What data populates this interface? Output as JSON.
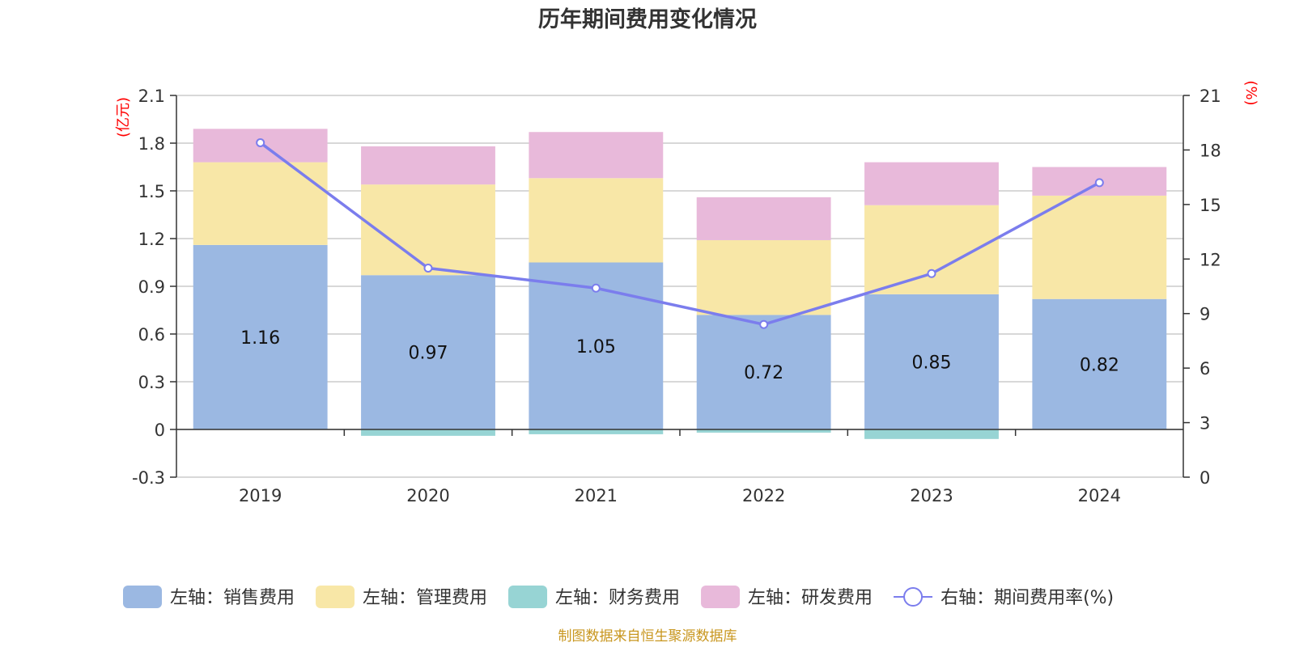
{
  "chart_data": {
    "type": "bar",
    "title": "历年期间费用变化情况",
    "categories": [
      "2019",
      "2020",
      "2021",
      "2022",
      "2023",
      "2024"
    ],
    "left_axis": {
      "unit": "(亿元)",
      "ylim": [
        -0.3,
        2.1
      ],
      "ticks": [
        "-0.3",
        "0",
        "0.3",
        "0.6",
        "0.9",
        "1.2",
        "1.5",
        "1.8",
        "2.1"
      ]
    },
    "right_axis": {
      "unit": "(%)",
      "ylim": [
        0,
        21
      ],
      "ticks": [
        "0",
        "3",
        "6",
        "9",
        "12",
        "15",
        "18",
        "21"
      ]
    },
    "series": [
      {
        "name": "左轴：销售费用",
        "type": "bar",
        "axis": "left",
        "color": "#9bb8e2",
        "values": [
          1.16,
          0.97,
          1.05,
          0.72,
          0.85,
          0.82
        ],
        "labels": [
          "1.16",
          "0.97",
          "1.05",
          "0.72",
          "0.85",
          "0.82"
        ]
      },
      {
        "name": "左轴：管理费用",
        "type": "bar",
        "axis": "left",
        "color": "#f8e7a7",
        "values": [
          0.52,
          0.57,
          0.53,
          0.47,
          0.56,
          0.65
        ]
      },
      {
        "name": "左轴：财务费用",
        "type": "bar",
        "axis": "left",
        "color": "#97d4d4",
        "values": [
          0.0,
          -0.04,
          -0.03,
          -0.02,
          -0.06,
          0.0
        ]
      },
      {
        "name": "左轴：研发费用",
        "type": "bar",
        "axis": "left",
        "color": "#e8b9da",
        "values": [
          0.21,
          0.24,
          0.29,
          0.27,
          0.27,
          0.18
        ]
      },
      {
        "name": "右轴：期间费用率(%)",
        "type": "line",
        "axis": "right",
        "color": "#7b7ded",
        "values": [
          18.4,
          11.5,
          10.4,
          8.4,
          11.2,
          16.2
        ]
      }
    ],
    "legend_position": "bottom",
    "grid": true,
    "source": "制图数据来自恒生聚源数据库"
  }
}
